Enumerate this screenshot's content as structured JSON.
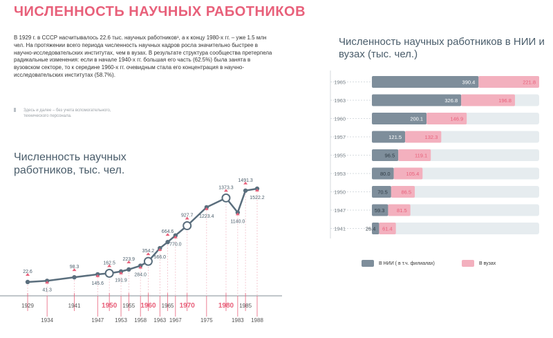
{
  "page_title": "ЧИСЛЕННОСТЬ НАУЧНЫХ РАБОТНИКОВ",
  "intro_text": "В 1929 г. в СССР насчитывалось 22.6 тыс. научных работников¹, а к концу 1980-х гг. – уже 1.5 млн чел. На протяжении всего периода численность научных кадров росла значительно быстрее в научно-исследовательских институтах, чем в вузах. В результате структура сообщества претерпела радикальные изменения: если в начале 1940-х гг. большая его часть (62.5%) была занята в вузовском секторе, то к середине 1960-х гг. очевидным стала его концентрация в научно-исследовательских институтах (58.7%).",
  "footnote": "Здесь и далее – без учета вспомогательного, технического персонала.",
  "colors": {
    "accent": "#e8607a",
    "slate": "#5a6e7d",
    "nii": "#7e8e9b",
    "vuz": "#f3b0be",
    "track": "#e6ecef",
    "axis": "#9aa4ab"
  },
  "chart_data": [
    {
      "type": "line",
      "title": "Численность научных работников, тыс. чел.",
      "x": [
        1929,
        1934,
        1941,
        1947,
        1950,
        1953,
        1955,
        1958,
        1960,
        1963,
        1965,
        1967,
        1970,
        1975,
        1980,
        1983,
        1985,
        1988
      ],
      "values": [
        22.6,
        41.3,
        98.3,
        145.6,
        162.5,
        191.9,
        223.9,
        284.0,
        354.2,
        566.0,
        664.6,
        770.0,
        927.7,
        1223.4,
        1373.3,
        1140.0,
        1491.3,
        1522.2
      ],
      "labels": [
        "22.6",
        "41.3",
        "98.3",
        "145.6",
        "162.5",
        "191.9",
        "223.9",
        "284.0",
        "354.2",
        "566.0",
        "664.6",
        "770.0",
        "927.7",
        "1223.4",
        "1373.3",
        "1140.0",
        "1491.3",
        "1522.2"
      ],
      "highlight_years": [
        1950,
        1960,
        1970,
        1980
      ],
      "axis_top_years": [
        "1929",
        "1941",
        "1950",
        "1955",
        "1960",
        "1965",
        "1970",
        "1980",
        "1985"
      ],
      "axis_bottom_years": [
        "1934",
        "1947",
        "1953",
        "1958",
        "1963",
        "1967",
        "1975",
        "1983",
        "1988"
      ],
      "ylim": [
        0,
        1600
      ]
    },
    {
      "type": "bar",
      "title": "Численность научных работников в НИИ и вузах (тыс. чел.)",
      "categories": [
        "1965",
        "1963",
        "1960",
        "1957",
        "1955",
        "1953",
        "1950",
        "1947",
        "1941"
      ],
      "series": [
        {
          "name": "В НИИ ( в т.ч. филиалах)",
          "values": [
            390.4,
            326.8,
            200.1,
            121.5,
            96.5,
            80.0,
            70.5,
            59.3,
            26.4
          ],
          "labels": [
            "390.4",
            "326.8",
            "200.1",
            "121.5",
            "96.5",
            "80.0",
            "70.5",
            "59.3",
            "26.4"
          ]
        },
        {
          "name": "В вузах",
          "values": [
            221.8,
            196.8,
            146.9,
            132.3,
            119.1,
            105.4,
            86.5,
            81.5,
            61.4
          ],
          "labels": [
            "221.8",
            "196.8",
            "146.9",
            "132.3",
            "119.1",
            "105.4",
            "86.5",
            "81.5",
            "61.4"
          ]
        }
      ],
      "xlim": [
        0,
        612.2
      ],
      "grid": true
    }
  ]
}
